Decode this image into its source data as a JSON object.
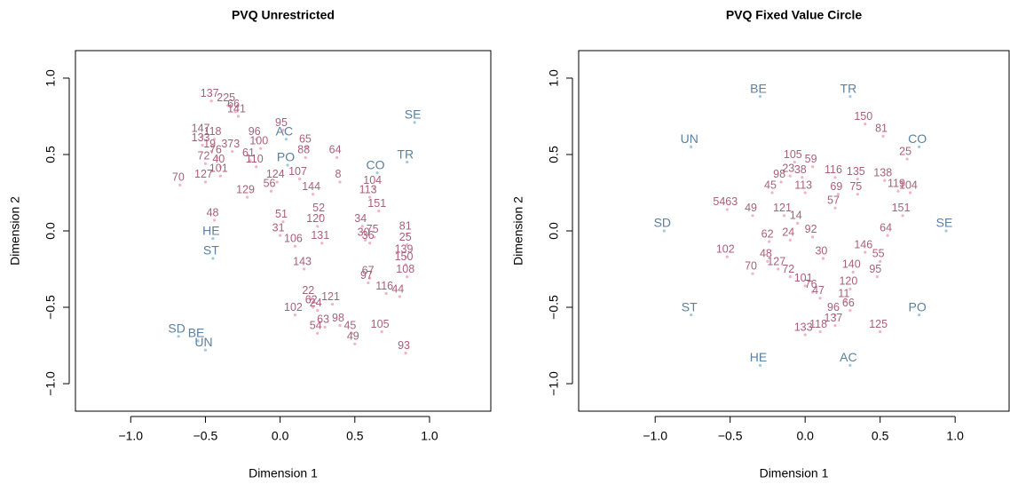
{
  "chart_data": [
    {
      "type": "scatter",
      "title": "PVQ Unrestricted",
      "xlabel": "Dimension 1",
      "ylabel": "Dimension 2",
      "xlim": [
        -1.37,
        1.41
      ],
      "ylim": [
        -1.18,
        1.18
      ],
      "xticks": [
        {
          "value": -1,
          "label": "−1.0"
        },
        {
          "value": -0.5,
          "label": "−0.5"
        },
        {
          "value": 0,
          "label": "0.0"
        },
        {
          "value": 0.5,
          "label": "0.5"
        },
        {
          "value": 1,
          "label": "1.0"
        }
      ],
      "yticks": [
        {
          "value": -1,
          "label": "−1.0"
        },
        {
          "value": -0.5,
          "label": "−0.5"
        },
        {
          "value": 0,
          "label": "0.0"
        },
        {
          "value": 0.5,
          "label": "0.5"
        },
        {
          "value": 1,
          "label": "1.0"
        }
      ],
      "series": [
        {
          "color": "#a8607a",
          "point_color": "#f2b3c2",
          "labels": [
            "137",
            "225",
            "141",
            "66",
            "95",
            "147",
            "133",
            "118",
            "19",
            "76",
            "72",
            "40",
            "373",
            "96",
            "100",
            "61",
            "101",
            "110",
            "70",
            "127",
            "129",
            "56",
            "124",
            "107",
            "65",
            "88",
            "64",
            "144",
            "8",
            "104",
            "113",
            "151",
            "48",
            "51",
            "31",
            "106",
            "131",
            "81",
            "25",
            "139",
            "150",
            "143",
            "22",
            "62",
            "102",
            "24",
            "121",
            "54",
            "63",
            "45",
            "98",
            "49",
            "105",
            "93",
            "44",
            "116",
            "67",
            "97",
            "108",
            "75",
            "30",
            "36",
            "52",
            "120",
            "34"
          ],
          "x": [
            -0.46,
            -0.35,
            -0.28,
            -0.3,
            0.02,
            -0.52,
            -0.52,
            -0.44,
            -0.46,
            -0.42,
            -0.5,
            -0.4,
            -0.32,
            -0.16,
            -0.13,
            -0.2,
            -0.4,
            -0.16,
            -0.67,
            -0.5,
            -0.22,
            -0.06,
            -0.02,
            0.13,
            0.18,
            0.17,
            0.38,
            0.22,
            0.4,
            0.63,
            0.6,
            0.66,
            -0.44,
            0.02,
            0,
            0.1,
            0.28,
            0.85,
            0.85,
            0.84,
            0.84,
            0.16,
            0.2,
            0.22,
            0.1,
            0.25,
            0.35,
            0.25,
            0.3,
            0.48,
            0.4,
            0.5,
            0.68,
            0.84,
            0.8,
            0.71,
            0.6,
            0.59,
            0.85,
            0.63,
            0.57,
            0.6,
            0.27,
            0.25,
            0.55
          ],
          "y": [
            0.85,
            0.82,
            0.75,
            0.78,
            0.66,
            0.62,
            0.56,
            0.6,
            0.52,
            0.48,
            0.44,
            0.42,
            0.52,
            0.6,
            0.54,
            0.46,
            0.36,
            0.42,
            0.3,
            0.32,
            0.22,
            0.26,
            0.32,
            0.34,
            0.55,
            0.48,
            0.48,
            0.24,
            0.32,
            0.28,
            0.22,
            0.13,
            0.07,
            0.06,
            -0.03,
            -0.1,
            -0.08,
            -0.02,
            -0.09,
            -0.17,
            -0.22,
            -0.25,
            -0.44,
            -0.5,
            -0.55,
            -0.52,
            -0.48,
            -0.67,
            -0.63,
            -0.67,
            -0.62,
            -0.74,
            -0.66,
            -0.8,
            -0.43,
            -0.41,
            -0.31,
            -0.34,
            -0.3,
            -0.04,
            -0.06,
            -0.08,
            0.1,
            0.03,
            0.03
          ]
        },
        {
          "color": "#5b80a0",
          "point_color": "#9ecae1",
          "labels": [
            "SE",
            "TR",
            "CO",
            "AC",
            "PO",
            "HE",
            "ST",
            "SD",
            "BE",
            "UN"
          ],
          "x": [
            0.9,
            0.85,
            0.65,
            0.04,
            0.05,
            -0.45,
            -0.45,
            -0.68,
            -0.55,
            -0.5
          ],
          "y": [
            0.71,
            0.45,
            0.38,
            0.6,
            0.43,
            -0.05,
            -0.18,
            -0.69,
            -0.72,
            -0.78
          ]
        }
      ]
    },
    {
      "type": "scatter",
      "title": "PVQ Fixed Value Circle",
      "xlabel": "Dimension 1",
      "ylabel": "Dimension 2",
      "xlim": [
        -1.51,
        1.36
      ],
      "ylim": [
        -1.18,
        1.18
      ],
      "xticks": [
        {
          "value": -1,
          "label": "−1.0"
        },
        {
          "value": -0.5,
          "label": "−0.5"
        },
        {
          "value": 0,
          "label": "0.0"
        },
        {
          "value": 0.5,
          "label": "0.5"
        },
        {
          "value": 1,
          "label": "1.0"
        }
      ],
      "yticks": [
        {
          "value": -1,
          "label": "−1.0"
        },
        {
          "value": -0.5,
          "label": "−0.5"
        },
        {
          "value": 0,
          "label": "0.0"
        },
        {
          "value": 0.5,
          "label": "0.5"
        },
        {
          "value": 1,
          "label": "1.0"
        }
      ],
      "series": [
        {
          "color": "#a8607a",
          "point_color": "#f2b3c2",
          "labels": [
            "150",
            "81",
            "25",
            "105",
            "59",
            "23",
            "38",
            "98",
            "116",
            "135",
            "138",
            "119",
            "104",
            "45",
            "5463",
            "49",
            "121",
            "113",
            "69",
            "75",
            "57",
            "151",
            "64",
            "102",
            "70",
            "48",
            "127",
            "62",
            "24",
            "92",
            "146",
            "55",
            "95",
            "72",
            "101",
            "76",
            "47",
            "120",
            "11",
            "66",
            "96",
            "137",
            "133",
            "118",
            "125",
            "140",
            "14",
            "30"
          ],
          "x": [
            0.4,
            0.52,
            0.68,
            -0.07,
            0.05,
            -0.1,
            -0.02,
            -0.16,
            0.2,
            0.35,
            0.53,
            0.62,
            0.7,
            -0.22,
            -0.52,
            -0.35,
            -0.14,
            0,
            0.22,
            0.35,
            0.2,
            0.65,
            0.55,
            -0.52,
            -0.35,
            -0.25,
            -0.18,
            -0.24,
            -0.1,
            0.05,
            0.4,
            0.5,
            0.48,
            -0.1,
            0,
            0.05,
            0.1,
            0.3,
            0.27,
            0.3,
            0.2,
            0.2,
            0,
            0.1,
            0.5,
            0.32,
            -0.05,
            0.12
          ],
          "y": [
            0.7,
            0.62,
            0.47,
            0.45,
            0.42,
            0.36,
            0.35,
            0.32,
            0.35,
            0.34,
            0.33,
            0.26,
            0.25,
            0.25,
            0.14,
            0.1,
            0.1,
            0.25,
            0.24,
            0.24,
            0.15,
            0.1,
            -0.03,
            -0.17,
            -0.28,
            -0.2,
            -0.25,
            -0.07,
            -0.06,
            -0.04,
            -0.14,
            -0.2,
            -0.3,
            -0.3,
            -0.36,
            -0.4,
            -0.44,
            -0.38,
            -0.46,
            -0.52,
            -0.55,
            -0.62,
            -0.68,
            -0.66,
            -0.66,
            -0.27,
            0.05,
            -0.18
          ]
        },
        {
          "color": "#5b80a0",
          "point_color": "#9ecae1",
          "labels": [
            "BE",
            "TR",
            "UN",
            "CO",
            "SD",
            "SE",
            "ST",
            "PO",
            "HE",
            "AC"
          ],
          "x": [
            -0.3,
            0.3,
            -0.76,
            0.76,
            -0.94,
            0.94,
            -0.76,
            0.76,
            -0.3,
            0.3
          ],
          "y": [
            0.88,
            0.88,
            0.55,
            0.55,
            0,
            0,
            -0.55,
            -0.55,
            -0.88,
            -0.88
          ]
        }
      ]
    }
  ]
}
